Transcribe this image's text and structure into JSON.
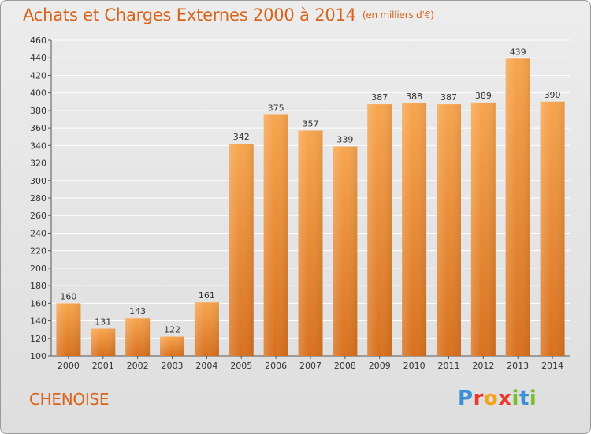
{
  "header": {
    "title": "Achats et Charges Externes 2000 à 2014",
    "subtitle": "(en milliers d'€)"
  },
  "footer": {
    "commune": "CHENOISE",
    "logo_text": "Proxiti",
    "logo_colors": [
      "#3a8fd6",
      "#e8392a",
      "#f5a31a",
      "#e8392a",
      "#7bbd2b",
      "#3a8fd6",
      "#7bbd2b"
    ]
  },
  "colors": {
    "bar_light": "#f7a54e",
    "bar_dark": "#d8711f",
    "text": "#d9631a",
    "axis_text": "#333333",
    "grid": "#ffffff"
  },
  "chart_data": {
    "type": "bar",
    "title": "Achats et Charges Externes 2000 à 2014",
    "subtitle": "(en milliers d'€)",
    "categories": [
      "2000",
      "2001",
      "2002",
      "2003",
      "2004",
      "2005",
      "2006",
      "2007",
      "2008",
      "2009",
      "2010",
      "2011",
      "2012",
      "2013",
      "2014"
    ],
    "values": [
      160,
      131,
      143,
      122,
      161,
      342,
      375,
      357,
      339,
      387,
      388,
      387,
      389,
      439,
      390
    ],
    "ylim": [
      100,
      460
    ],
    "yticks": [
      100,
      120,
      140,
      160,
      180,
      200,
      220,
      240,
      260,
      280,
      300,
      320,
      340,
      360,
      380,
      400,
      420,
      440,
      460
    ],
    "grid": true,
    "data_labels": true
  }
}
